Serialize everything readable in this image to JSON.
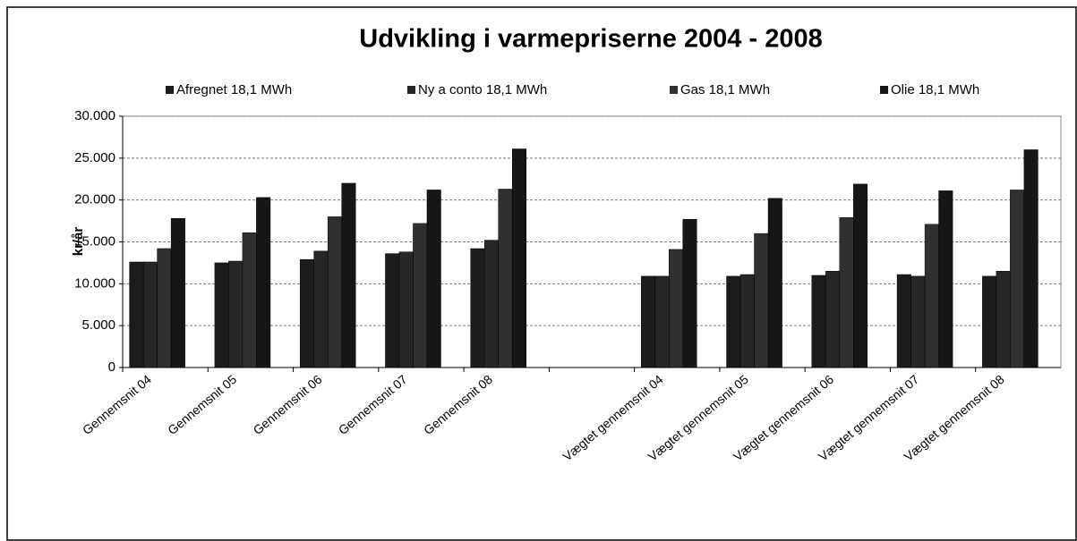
{
  "chart_data": {
    "type": "bar",
    "title": "Udvikling i varmepriserne 2004 - 2008",
    "y_label": "kr/år",
    "categories": [
      "Gennemsnit 04",
      "Gennemsnit 05",
      "Gennemsnit 06",
      "Gennemsnit 07",
      "Gennemsnit 08",
      null,
      "Vægtet gennemsnit 04",
      "Vægtet gennemsnit 05",
      "Vægtet gennemsnit 06",
      "Vægtet gennemsnit 07",
      "Vægtet gennemsnit 08"
    ],
    "series": [
      {
        "name": "Afregnet 18,1 MWh",
        "color": "#1c1c1c",
        "values": [
          12600,
          12500,
          12900,
          13600,
          14200,
          null,
          10900,
          10900,
          11000,
          11100,
          10900
        ]
      },
      {
        "name": "Ny a conto 18,1 MWh",
        "color": "#262626",
        "values": [
          12600,
          12700,
          13900,
          13800,
          15200,
          null,
          10900,
          11100,
          11500,
          10900,
          11500
        ]
      },
      {
        "name": "Gas 18,1 MWh",
        "color": "#303030",
        "values": [
          14200,
          16100,
          18000,
          17200,
          21300,
          null,
          14100,
          16000,
          17900,
          17100,
          21200
        ]
      },
      {
        "name": "Olie 18,1 MWh",
        "color": "#161616",
        "values": [
          17800,
          20300,
          22000,
          21200,
          26100,
          null,
          17700,
          20200,
          21900,
          21100,
          26000
        ]
      }
    ],
    "ylim": [
      0,
      30000
    ],
    "yticks": [
      0,
      {
        "value": 5000,
        "label": "5.000"
      },
      {
        "value": 10000,
        "label": "10.000"
      },
      {
        "value": 15000,
        "label": "15.000"
      },
      {
        "value": 20000,
        "label": "20.000"
      },
      {
        "value": 25000,
        "label": "25.000"
      },
      {
        "value": 30000,
        "label": "30.000"
      }
    ],
    "grid": true
  }
}
